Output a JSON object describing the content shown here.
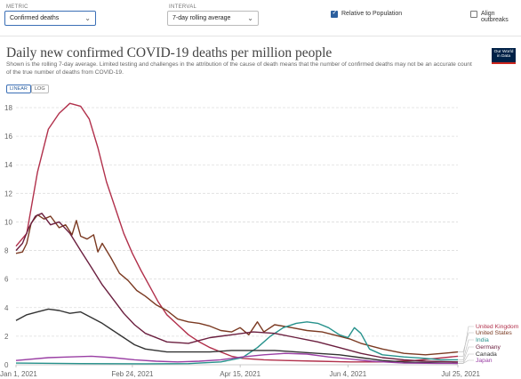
{
  "controls": {
    "metric": {
      "label": "METRIC",
      "value": "Confirmed deaths"
    },
    "interval": {
      "label": "INTERVAL",
      "value": "7-day rolling average"
    },
    "relative_to_population": {
      "label": "Relative to Population",
      "checked": true
    },
    "align_outbreaks": {
      "label": "Align outbreaks",
      "checked": false
    }
  },
  "header": {
    "title": "Daily new confirmed COVID-19 deaths per million people",
    "subtitle": "Shown is the rolling 7-day average. Limited testing and challenges in the attribution of the cause of death means that the number of confirmed deaths may not be an accurate count of the true number of deaths from COVID-19.",
    "logo_line1": "Our World",
    "logo_line2": "in Data"
  },
  "scale_toggle": {
    "linear": "LINEAR",
    "log": "LOG",
    "selected": "LINEAR"
  },
  "chart_data": {
    "type": "line",
    "x_ticks": [
      "Jan 1, 2021",
      "Feb 24, 2021",
      "Apr 15, 2021",
      "Jun 4, 2021",
      "Jul 25, 2021"
    ],
    "x_tick_days": [
      0,
      54,
      104,
      154,
      205
    ],
    "x_range_days": [
      0,
      205
    ],
    "ylim": [
      0,
      18
    ],
    "y_ticks": [
      0,
      2,
      4,
      6,
      8,
      10,
      12,
      14,
      16,
      18
    ],
    "grid": "horizontal dashed",
    "legend_position": "right",
    "series": [
      {
        "name": "United Kingdom",
        "color": "#b1304b",
        "points": [
          [
            0,
            8.3
          ],
          [
            5,
            9.2
          ],
          [
            10,
            13.5
          ],
          [
            15,
            16.5
          ],
          [
            20,
            17.6
          ],
          [
            25,
            18.3
          ],
          [
            30,
            18.1
          ],
          [
            34,
            17.2
          ],
          [
            38,
            15.2
          ],
          [
            42,
            12.8
          ],
          [
            46,
            11.0
          ],
          [
            50,
            9.2
          ],
          [
            54,
            7.8
          ],
          [
            58,
            6.6
          ],
          [
            62,
            5.5
          ],
          [
            66,
            4.4
          ],
          [
            70,
            3.5
          ],
          [
            75,
            2.8
          ],
          [
            80,
            2.1
          ],
          [
            85,
            1.6
          ],
          [
            90,
            1.2
          ],
          [
            95,
            0.9
          ],
          [
            100,
            0.6
          ],
          [
            105,
            0.45
          ],
          [
            115,
            0.35
          ],
          [
            125,
            0.3
          ],
          [
            140,
            0.25
          ],
          [
            155,
            0.2
          ],
          [
            170,
            0.2
          ],
          [
            185,
            0.3
          ],
          [
            195,
            0.45
          ],
          [
            205,
            0.6
          ]
        ]
      },
      {
        "name": "United States",
        "color": "#7b3a22",
        "points": [
          [
            0,
            7.8
          ],
          [
            3,
            7.9
          ],
          [
            5,
            8.5
          ],
          [
            7,
            9.9
          ],
          [
            10,
            10.5
          ],
          [
            13,
            10.2
          ],
          [
            16,
            10.4
          ],
          [
            20,
            9.6
          ],
          [
            23,
            9.8
          ],
          [
            26,
            9.1
          ],
          [
            28,
            10.1
          ],
          [
            30,
            9.0
          ],
          [
            33,
            8.8
          ],
          [
            36,
            9.1
          ],
          [
            38,
            7.9
          ],
          [
            40,
            8.5
          ],
          [
            44,
            7.5
          ],
          [
            48,
            6.4
          ],
          [
            52,
            5.9
          ],
          [
            56,
            5.2
          ],
          [
            60,
            4.8
          ],
          [
            65,
            4.2
          ],
          [
            70,
            3.8
          ],
          [
            75,
            3.2
          ],
          [
            80,
            3.0
          ],
          [
            85,
            2.9
          ],
          [
            90,
            2.7
          ],
          [
            95,
            2.4
          ],
          [
            100,
            2.3
          ],
          [
            104,
            2.6
          ],
          [
            108,
            2.1
          ],
          [
            112,
            3.0
          ],
          [
            115,
            2.3
          ],
          [
            120,
            2.8
          ],
          [
            128,
            2.6
          ],
          [
            135,
            2.4
          ],
          [
            142,
            2.3
          ],
          [
            150,
            2.0
          ],
          [
            155,
            1.8
          ],
          [
            160,
            1.5
          ],
          [
            170,
            1.1
          ],
          [
            180,
            0.8
          ],
          [
            190,
            0.7
          ],
          [
            198,
            0.8
          ],
          [
            205,
            0.9
          ]
        ]
      },
      {
        "name": "India",
        "color": "#27928c",
        "points": [
          [
            0,
            0.12
          ],
          [
            30,
            0.08
          ],
          [
            60,
            0.07
          ],
          [
            80,
            0.08
          ],
          [
            95,
            0.2
          ],
          [
            105,
            0.5
          ],
          [
            112,
            1.2
          ],
          [
            118,
            2.0
          ],
          [
            124,
            2.6
          ],
          [
            130,
            2.9
          ],
          [
            135,
            3.0
          ],
          [
            140,
            2.9
          ],
          [
            145,
            2.6
          ],
          [
            150,
            2.1
          ],
          [
            154,
            1.9
          ],
          [
            157,
            2.6
          ],
          [
            160,
            2.2
          ],
          [
            164,
            1.1
          ],
          [
            170,
            0.7
          ],
          [
            180,
            0.55
          ],
          [
            190,
            0.45
          ],
          [
            197,
            0.35
          ],
          [
            205,
            0.35
          ]
        ]
      },
      {
        "name": "Germany",
        "color": "#6b1f3f",
        "points": [
          [
            0,
            8.0
          ],
          [
            3,
            8.5
          ],
          [
            6,
            9.6
          ],
          [
            9,
            10.4
          ],
          [
            12,
            10.6
          ],
          [
            16,
            9.8
          ],
          [
            20,
            10.0
          ],
          [
            25,
            9.2
          ],
          [
            30,
            8.0
          ],
          [
            35,
            6.8
          ],
          [
            40,
            5.6
          ],
          [
            45,
            4.6
          ],
          [
            50,
            3.6
          ],
          [
            55,
            2.8
          ],
          [
            60,
            2.2
          ],
          [
            70,
            1.6
          ],
          [
            80,
            1.5
          ],
          [
            90,
            1.9
          ],
          [
            100,
            2.1
          ],
          [
            110,
            2.3
          ],
          [
            120,
            2.2
          ],
          [
            130,
            1.9
          ],
          [
            140,
            1.6
          ],
          [
            150,
            1.2
          ],
          [
            160,
            0.8
          ],
          [
            170,
            0.5
          ],
          [
            180,
            0.35
          ],
          [
            190,
            0.25
          ],
          [
            205,
            0.2
          ]
        ]
      },
      {
        "name": "Canada",
        "color": "#333333",
        "points": [
          [
            0,
            3.1
          ],
          [
            5,
            3.5
          ],
          [
            10,
            3.7
          ],
          [
            15,
            3.9
          ],
          [
            20,
            3.8
          ],
          [
            25,
            3.6
          ],
          [
            30,
            3.7
          ],
          [
            35,
            3.3
          ],
          [
            40,
            2.9
          ],
          [
            45,
            2.4
          ],
          [
            50,
            1.9
          ],
          [
            55,
            1.4
          ],
          [
            60,
            1.1
          ],
          [
            70,
            0.9
          ],
          [
            80,
            0.9
          ],
          [
            90,
            0.9
          ],
          [
            100,
            1.0
          ],
          [
            110,
            1.0
          ],
          [
            120,
            1.0
          ],
          [
            130,
            0.9
          ],
          [
            140,
            0.8
          ],
          [
            150,
            0.7
          ],
          [
            160,
            0.5
          ],
          [
            170,
            0.3
          ],
          [
            180,
            0.2
          ],
          [
            190,
            0.15
          ],
          [
            205,
            0.1
          ]
        ]
      },
      {
        "name": "Japan",
        "color": "#9a3fa4",
        "points": [
          [
            0,
            0.3
          ],
          [
            15,
            0.5
          ],
          [
            25,
            0.55
          ],
          [
            35,
            0.6
          ],
          [
            45,
            0.5
          ],
          [
            55,
            0.35
          ],
          [
            65,
            0.25
          ],
          [
            75,
            0.2
          ],
          [
            85,
            0.25
          ],
          [
            95,
            0.35
          ],
          [
            105,
            0.55
          ],
          [
            115,
            0.7
          ],
          [
            125,
            0.8
          ],
          [
            135,
            0.75
          ],
          [
            145,
            0.55
          ],
          [
            155,
            0.4
          ],
          [
            165,
            0.25
          ],
          [
            180,
            0.12
          ],
          [
            195,
            0.1
          ],
          [
            205,
            0.1
          ]
        ]
      }
    ]
  }
}
